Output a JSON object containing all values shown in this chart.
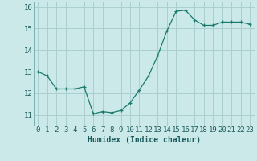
{
  "x": [
    0,
    1,
    2,
    3,
    4,
    5,
    6,
    7,
    8,
    9,
    10,
    11,
    12,
    13,
    14,
    15,
    16,
    17,
    18,
    19,
    20,
    21,
    22,
    23
  ],
  "y": [
    13.0,
    12.8,
    12.2,
    12.2,
    12.2,
    12.3,
    11.05,
    11.15,
    11.1,
    11.2,
    11.55,
    12.15,
    12.8,
    13.75,
    14.9,
    15.8,
    15.85,
    15.4,
    15.15,
    15.15,
    15.3,
    15.3,
    15.3,
    15.2
  ],
  "line_color": "#1a7a6e",
  "marker": "+",
  "marker_color": "#1a7a6e",
  "bg_color": "#cce9e9",
  "grid_color": "#aacfcf",
  "xlabel": "Humidex (Indice chaleur)",
  "xlim": [
    -0.5,
    23.5
  ],
  "ylim": [
    10.5,
    16.25
  ],
  "yticks": [
    11,
    12,
    13,
    14,
    15,
    16
  ],
  "xticks": [
    0,
    1,
    2,
    3,
    4,
    5,
    6,
    7,
    8,
    9,
    10,
    11,
    12,
    13,
    14,
    15,
    16,
    17,
    18,
    19,
    20,
    21,
    22,
    23
  ],
  "xlabel_fontsize": 7.0,
  "tick_fontsize": 6.5,
  "line_width": 0.9,
  "marker_size": 3.5
}
